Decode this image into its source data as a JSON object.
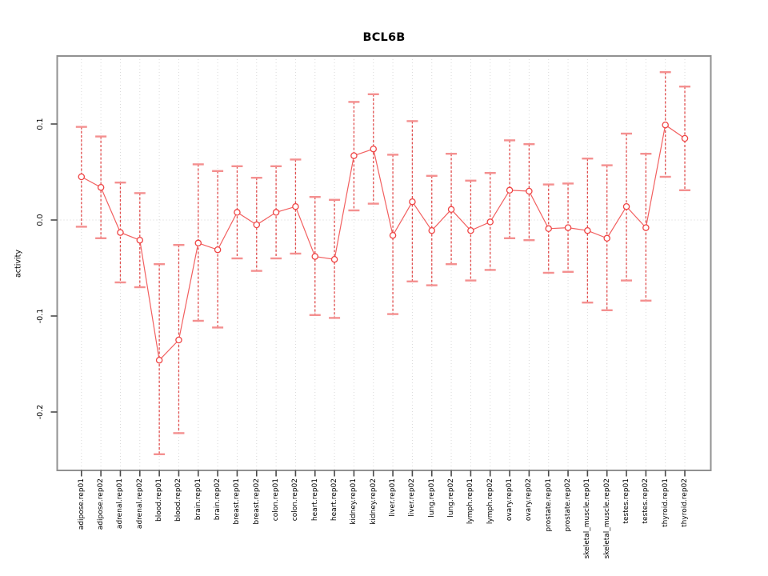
{
  "chart_data": {
    "type": "scatter",
    "title": "BCL6B",
    "xlabel": "",
    "ylabel": "activity",
    "legend": "none",
    "grid": {
      "vertical": "dotted line at every category",
      "horizontal": "dotted line at y=0 only"
    },
    "ylim": [
      -0.261,
      0.171
    ],
    "yticks": [
      0.1,
      0.0,
      -0.1,
      -0.2
    ],
    "ytick_labels": [
      "0.1",
      "0.0",
      "-0.1",
      "-0.2"
    ],
    "point_marker": "open circle with error bars, consecutive points connected by line segments",
    "categories": [
      "adipose.rep01",
      "adipose.rep02",
      "adrenal.rep01",
      "adrenal.rep02",
      "blood.rep01",
      "blood.rep02",
      "brain.rep01",
      "brain.rep02",
      "breast.rep01",
      "breast.rep02",
      "colon.rep01",
      "colon.rep02",
      "heart.rep01",
      "heart.rep02",
      "kidney.rep01",
      "kidney.rep02",
      "liver.rep01",
      "liver.rep02",
      "lung.rep01",
      "lung.rep02",
      "lymph.rep01",
      "lymph.rep02",
      "ovary.rep01",
      "ovary.rep02",
      "prostate.rep01",
      "prostate.rep02",
      "skeletal_muscle.rep01",
      "skeletal_muscle.rep02",
      "testes.rep01",
      "testes.rep02",
      "thyroid.rep01",
      "thyroid.rep02"
    ],
    "series": [
      {
        "name": "activity",
        "values": [
          0.045,
          0.034,
          -0.013,
          -0.021,
          -0.146,
          -0.125,
          -0.024,
          -0.031,
          0.008,
          -0.005,
          0.008,
          0.014,
          -0.038,
          -0.041,
          0.067,
          0.074,
          -0.016,
          0.019,
          -0.011,
          0.011,
          -0.011,
          -0.002,
          0.031,
          0.03,
          -0.009,
          -0.008,
          -0.011,
          -0.019,
          0.014,
          -0.008,
          0.099,
          0.085
        ],
        "ci_lower": [
          -0.007,
          -0.019,
          -0.065,
          -0.07,
          -0.244,
          -0.222,
          -0.105,
          -0.112,
          -0.04,
          -0.053,
          -0.04,
          -0.035,
          -0.099,
          -0.102,
          0.01,
          0.017,
          -0.098,
          -0.064,
          -0.068,
          -0.046,
          -0.063,
          -0.052,
          -0.019,
          -0.021,
          -0.055,
          -0.054,
          -0.086,
          -0.094,
          -0.063,
          -0.084,
          0.045,
          0.031
        ],
        "ci_upper": [
          0.097,
          0.087,
          0.039,
          0.028,
          -0.046,
          -0.026,
          0.058,
          0.051,
          0.056,
          0.044,
          0.056,
          0.063,
          0.024,
          0.021,
          0.123,
          0.131,
          0.068,
          0.103,
          0.046,
          0.069,
          0.041,
          0.049,
          0.083,
          0.079,
          0.037,
          0.038,
          0.064,
          0.057,
          0.09,
          0.069,
          0.154,
          0.139
        ]
      }
    ]
  },
  "colors": {
    "point_stroke": "#ef4545",
    "series_line": "#f26060",
    "error_bar_line": "#e14f4f",
    "error_bar_cap": "#f49090",
    "grid_line": "#d9d9d9",
    "zero_line": "#d4d4d4",
    "plot_border": "#919191",
    "axis_tick": "#4a4a4a",
    "text": "#000000",
    "background": "#ffffff"
  }
}
